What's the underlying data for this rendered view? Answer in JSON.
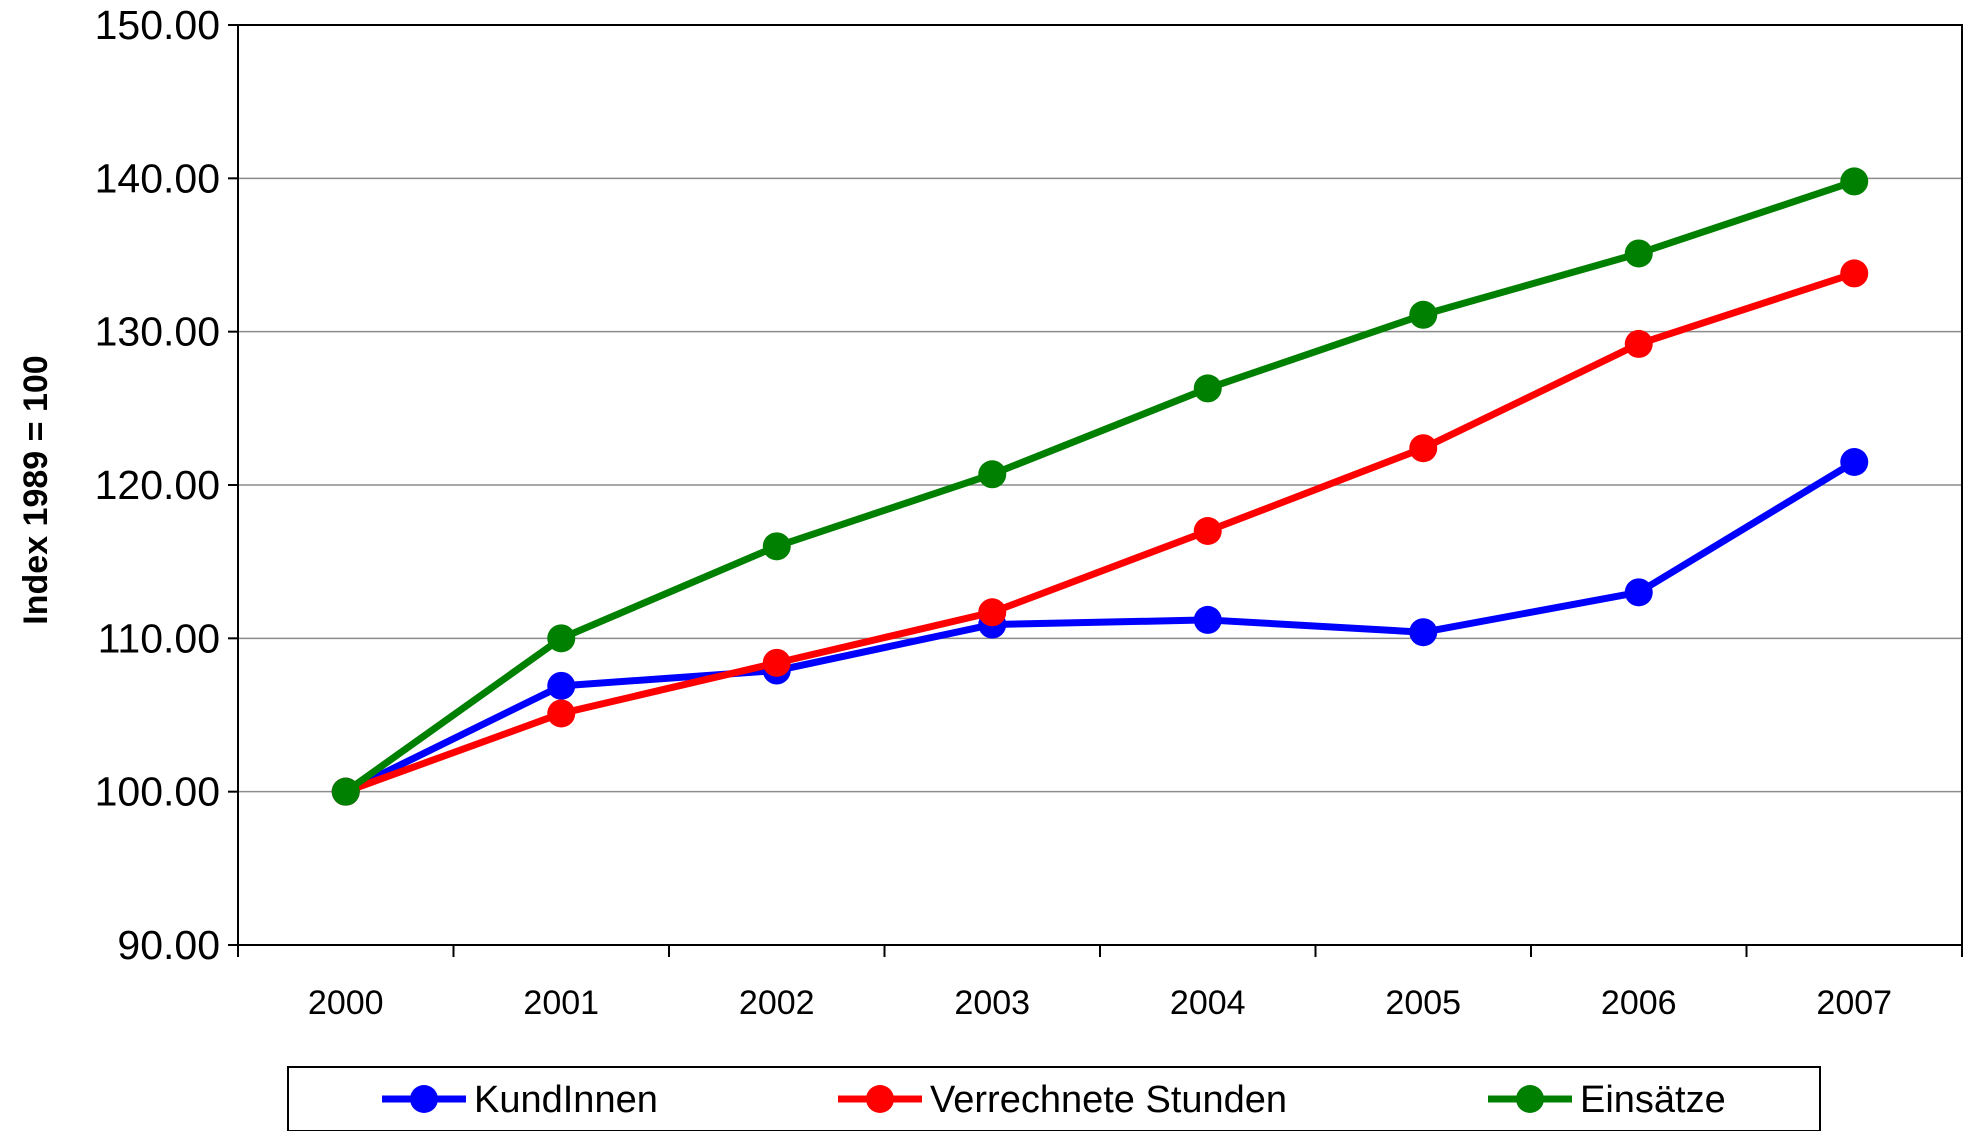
{
  "chart_data": {
    "type": "line",
    "title": "",
    "xlabel": "",
    "ylabel": "Index 1989 = 100",
    "ylim": [
      90,
      150
    ],
    "yticks": [
      "90.00",
      "100.00",
      "110.00",
      "120.00",
      "130.00",
      "140.00",
      "150.00"
    ],
    "categories": [
      "2000",
      "2001",
      "2002",
      "2003",
      "2004",
      "2005",
      "2006",
      "2007"
    ],
    "grid": true,
    "legend_position": "bottom",
    "series": [
      {
        "name": "KundInnen",
        "color": "#0000ff",
        "values": [
          100.0,
          106.9,
          107.9,
          110.9,
          111.2,
          110.4,
          113.0,
          121.5
        ]
      },
      {
        "name": "Verrechnete Stunden",
        "color": "#ff0000",
        "values": [
          100.0,
          105.1,
          108.4,
          111.7,
          117.0,
          122.4,
          129.2,
          133.8
        ]
      },
      {
        "name": "Einsätze",
        "color": "#008000",
        "values": [
          100.0,
          110.0,
          116.0,
          120.7,
          126.3,
          131.1,
          135.1,
          139.8
        ]
      }
    ]
  }
}
